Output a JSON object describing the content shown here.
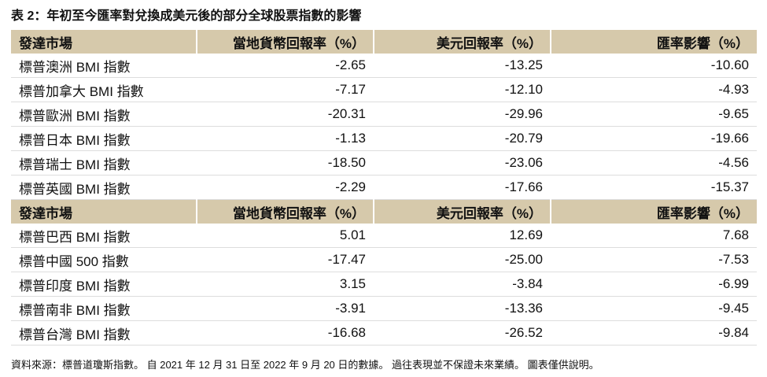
{
  "title": "表 2：年初至今匯率對兌換成美元後的部分全球股票指數的影響",
  "sections": [
    {
      "header": [
        "發達市場",
        "當地貨幣回報率（%）",
        "美元回報率（%）",
        "匯率影響（%）"
      ],
      "rows": [
        [
          "標普澳洲 BMI 指數",
          "-2.65",
          "-13.25",
          "-10.60"
        ],
        [
          "標普加拿大 BMI 指數",
          "-7.17",
          "-12.10",
          "-4.93"
        ],
        [
          "標普歐洲 BMI 指數",
          "-20.31",
          "-29.96",
          "-9.65"
        ],
        [
          "標普日本 BMI 指數",
          "-1.13",
          "-20.79",
          "-19.66"
        ],
        [
          "標普瑞士 BMI 指數",
          "-18.50",
          "-23.06",
          "-4.56"
        ],
        [
          "標普英國 BMI 指數",
          "-2.29",
          "-17.66",
          "-15.37"
        ]
      ]
    },
    {
      "header": [
        "發達市場",
        "當地貨幣回報率（%）",
        "美元回報率（%）",
        "匯率影響（%）"
      ],
      "rows": [
        [
          "標普巴西 BMI 指數",
          "5.01",
          "12.69",
          "7.68"
        ],
        [
          "標普中國 500 指數",
          "-17.47",
          "-25.00",
          "-7.53"
        ],
        [
          "標普印度 BMI 指數",
          "3.15",
          "-3.84",
          "-6.99"
        ],
        [
          "標普南非 BMI 指數",
          "-3.91",
          "-13.36",
          "-9.45"
        ],
        [
          "標普台灣 BMI 指數",
          "-16.68",
          "-26.52",
          "-9.84"
        ]
      ]
    }
  ],
  "footnote": "資料來源：標普道瓊斯指數。 自 2021 年 12 月 31 日至 2022 年 9 月 20 日的數據。 過往表現並不保證未來業績。 圖表僅供說明。"
}
